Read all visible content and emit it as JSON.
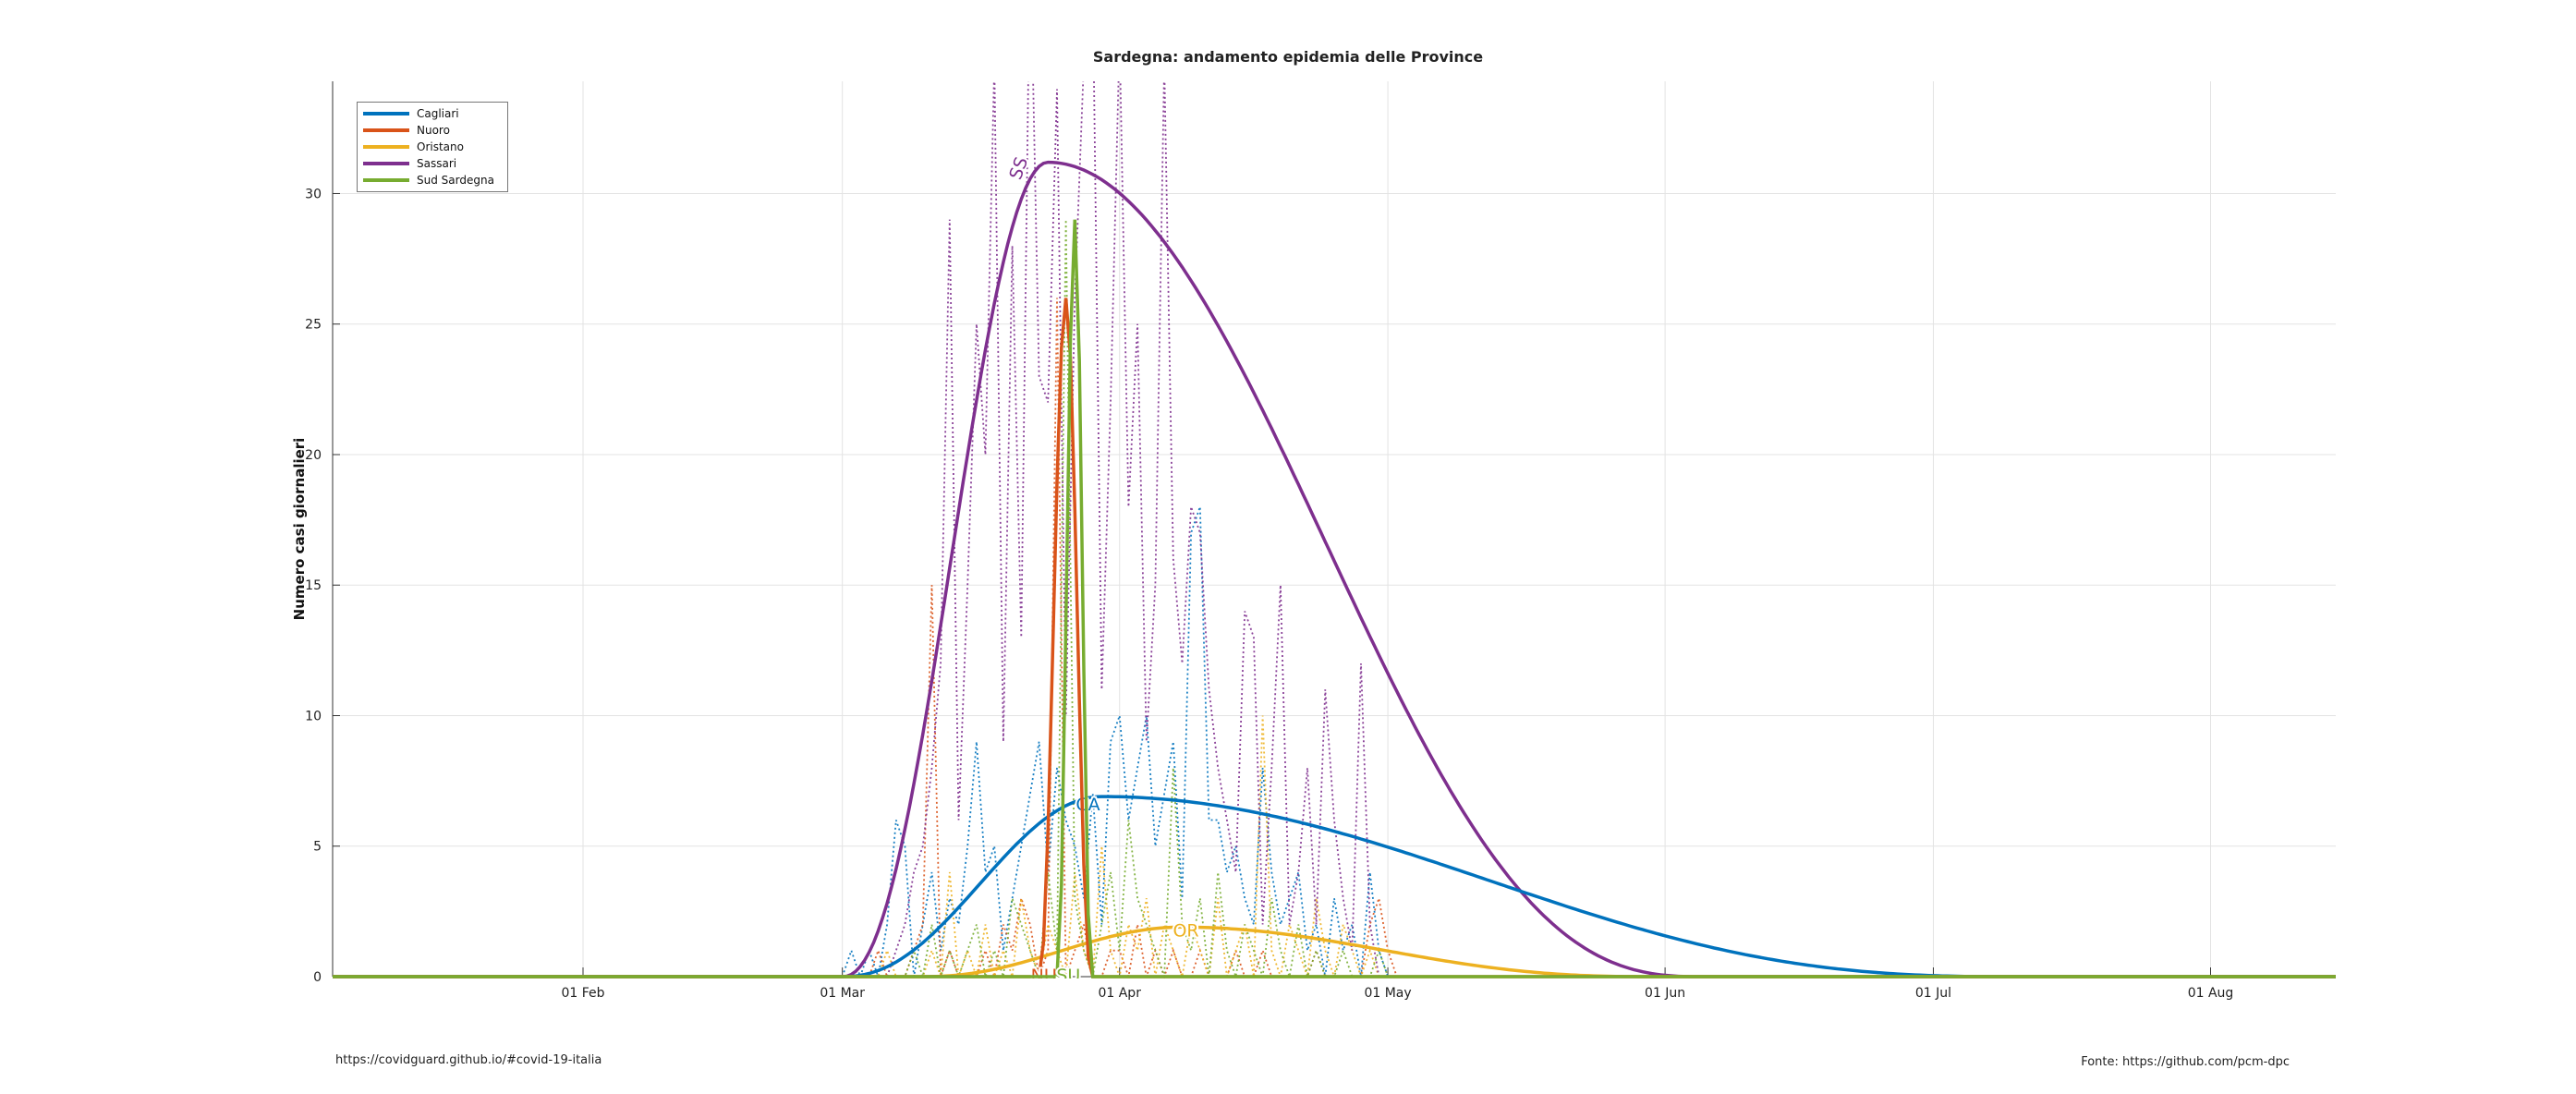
{
  "footer": {
    "left": "https://covidguard.github.io/#covid-19-italia",
    "right": "Fonte: https://github.com/pcm-dpc"
  },
  "chart_data": {
    "type": "line",
    "title": "Sardegna: andamento epidemia delle Province",
    "ylabel": "Numero casi giornalieri",
    "xlabel": "",
    "x_range": [
      "2020-01-04",
      "2020-08-15"
    ],
    "ylim": [
      0,
      34.3
    ],
    "y_ticks": [
      0,
      5,
      10,
      15,
      20,
      25,
      30
    ],
    "x_ticks": [
      {
        "date": "2020-02-01",
        "label": "01 Feb"
      },
      {
        "date": "2020-03-01",
        "label": "01 Mar"
      },
      {
        "date": "2020-04-01",
        "label": "01 Apr"
      },
      {
        "date": "2020-05-01",
        "label": "01 May"
      },
      {
        "date": "2020-06-01",
        "label": "01 Jun"
      },
      {
        "date": "2020-07-01",
        "label": "01 Jul"
      },
      {
        "date": "2020-08-01",
        "label": "01 Aug"
      }
    ],
    "grid": true,
    "legend_position": "top-left",
    "series": [
      {
        "name": "Cagliari",
        "abbr": "CA",
        "color": "#0072BD",
        "fit": {
          "peak_date": "2020-03-30",
          "peak": 6.9,
          "start": "2020-03-01",
          "end": "2020-07-10"
        },
        "daily_start": "2020-03-01",
        "daily": [
          0,
          1,
          0,
          1,
          0,
          2,
          6,
          5,
          0,
          2,
          4,
          1,
          3,
          2,
          5,
          9,
          4,
          5,
          1,
          3,
          5,
          7,
          9,
          4,
          8,
          6,
          5,
          3,
          7,
          2,
          9,
          10,
          6,
          8,
          10,
          5,
          7,
          9,
          3,
          17,
          18,
          6,
          6,
          4,
          5,
          3,
          2,
          8,
          4,
          2,
          3,
          4,
          1,
          2,
          0,
          3,
          1,
          2,
          0,
          4,
          1,
          0,
          0,
          0
        ]
      },
      {
        "name": "Nuoro",
        "abbr": "NU",
        "color": "#D95319",
        "fit": {
          "peak_date": "2020-03-26",
          "peak": 26,
          "start": "2020-03-23",
          "end": "2020-03-29"
        },
        "daily_start": "2020-03-01",
        "daily": [
          0,
          0,
          0,
          0,
          1,
          0,
          0,
          0,
          1,
          2,
          15,
          0,
          1,
          0,
          0,
          0,
          1,
          0,
          2,
          1,
          3,
          2,
          0,
          1,
          26,
          0,
          1,
          2,
          0,
          0,
          1,
          1,
          0,
          2,
          0,
          1,
          0,
          1,
          0,
          0,
          1,
          0,
          0,
          0,
          1,
          0,
          0,
          1,
          0,
          0,
          0,
          0,
          0,
          1,
          0,
          0,
          0,
          0,
          0,
          2,
          3,
          1,
          0,
          0
        ]
      },
      {
        "name": "Oristano",
        "abbr": "OR",
        "color": "#EDB120",
        "fit": {
          "peak_date": "2020-04-08",
          "peak": 1.9,
          "start": "2020-03-10",
          "end": "2020-05-31"
        },
        "daily_start": "2020-03-01",
        "daily": [
          0,
          0,
          0,
          0,
          0,
          1,
          0,
          0,
          0,
          0,
          1,
          0,
          4,
          0,
          1,
          0,
          2,
          0,
          1,
          0,
          3,
          1,
          0,
          2,
          1,
          0,
          4,
          1,
          0,
          5,
          1,
          0,
          2,
          1,
          3,
          0,
          2,
          1,
          0,
          2,
          1,
          0,
          3,
          0,
          1,
          2,
          0,
          10,
          1,
          0,
          2,
          1,
          0,
          3,
          1,
          0,
          2,
          1,
          0,
          1,
          0,
          0,
          0,
          0
        ]
      },
      {
        "name": "Sassari",
        "abbr": "SS",
        "color": "#7E2F8E",
        "fit": {
          "peak_date": "2020-03-24",
          "peak": 31.2,
          "start": "2020-03-01",
          "end": "2020-06-05"
        },
        "daily_start": "2020-03-05",
        "daily": [
          0,
          0,
          1,
          2,
          4,
          5,
          8,
          12,
          29,
          6,
          15,
          25,
          20,
          35,
          9,
          28,
          13,
          40,
          23,
          22,
          34,
          10,
          26,
          35,
          38,
          11,
          22,
          36,
          18,
          25,
          9,
          15,
          35,
          16,
          12,
          18,
          17,
          11,
          8,
          6,
          4,
          14,
          13,
          2,
          8,
          15,
          2,
          4,
          8,
          2,
          11,
          6,
          3,
          1,
          12,
          2,
          0,
          0
        ]
      },
      {
        "name": "Sud Sardegna",
        "abbr": "SU",
        "color": "#77AC30",
        "fit": {
          "peak_date": "2020-03-27",
          "peak": 29,
          "start": "2020-03-25",
          "end": "2020-03-29"
        },
        "daily_start": "2020-03-01",
        "daily": [
          0,
          0,
          0,
          0,
          0,
          0,
          0,
          0,
          1,
          0,
          2,
          0,
          1,
          0,
          1,
          2,
          0,
          1,
          0,
          3,
          2,
          1,
          0,
          4,
          1,
          29,
          3,
          1,
          0,
          2,
          4,
          1,
          6,
          3,
          2,
          1,
          0,
          8,
          2,
          1,
          3,
          0,
          4,
          1,
          0,
          2,
          1,
          0,
          3,
          1,
          0,
          2,
          0,
          1,
          0,
          0,
          1,
          0,
          0,
          0,
          1,
          0,
          0,
          0
        ]
      }
    ]
  }
}
